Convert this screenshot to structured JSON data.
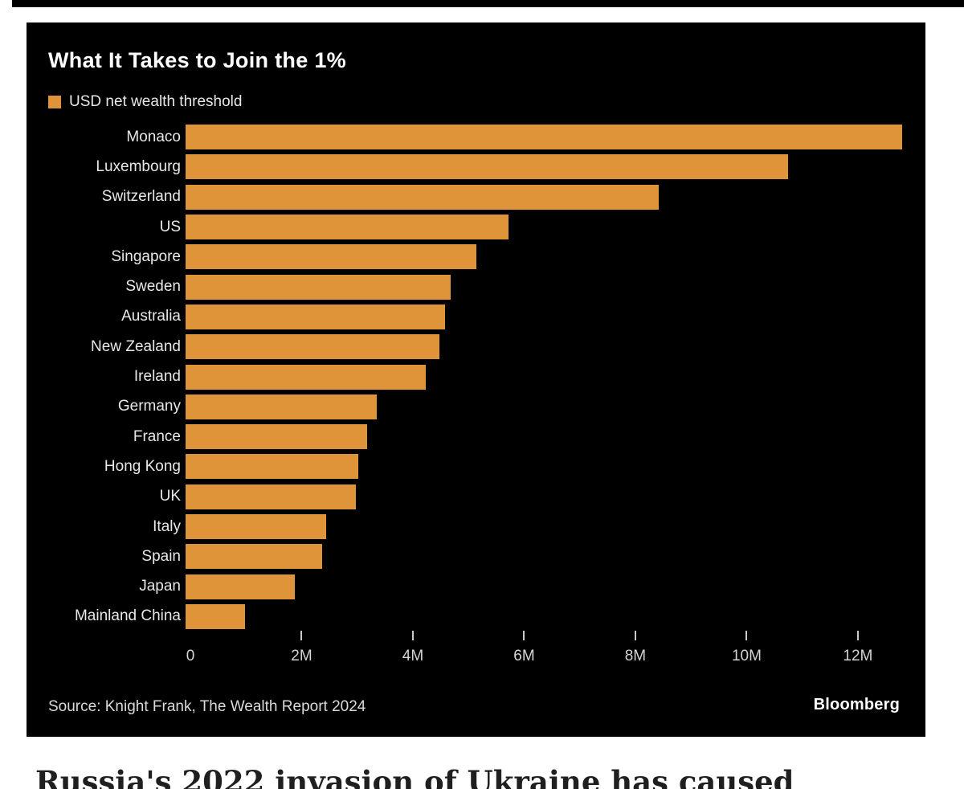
{
  "page": {
    "background": "#ffffff",
    "top_strip_color": "#000000"
  },
  "chart": {
    "title": "What It Takes to Join the 1%",
    "legend": {
      "label": "USD net wealth threshold",
      "swatch_color": "#DF9439"
    },
    "source": "Source: Knight Frank, The Wealth Report 2024",
    "brand": "Bloomberg",
    "colors": {
      "card_bg": "#000000",
      "bar": "#DF9439",
      "title_text": "#ffffff",
      "label_text": "#e8e8e8",
      "axis_text": "#d4d4d4"
    }
  },
  "chart_data": {
    "type": "bar",
    "orientation": "horizontal",
    "title": "What It Takes to Join the 1%",
    "series_label": "USD net wealth threshold",
    "unit": "USD millions",
    "categories": [
      "Monaco",
      "Luxembourg",
      "Switzerland",
      "US",
      "Singapore",
      "Sweden",
      "Australia",
      "New Zealand",
      "Ireland",
      "Germany",
      "France",
      "Hong Kong",
      "UK",
      "Italy",
      "Spain",
      "Japan",
      "Mainland China"
    ],
    "values_musd": [
      12.88,
      10.83,
      8.51,
      5.81,
      5.23,
      4.76,
      4.67,
      4.57,
      4.32,
      3.43,
      3.27,
      3.1,
      3.06,
      2.53,
      2.46,
      1.97,
      1.07
    ],
    "xlim": [
      0,
      13.2
    ],
    "x_ticks": [
      {
        "value": 0,
        "label": "0",
        "mark": false
      },
      {
        "value": 2,
        "label": "2M",
        "mark": true
      },
      {
        "value": 4,
        "label": "4M",
        "mark": true
      },
      {
        "value": 6,
        "label": "6M",
        "mark": true
      },
      {
        "value": 8,
        "label": "8M",
        "mark": true
      },
      {
        "value": 10,
        "label": "10M",
        "mark": true
      },
      {
        "value": 12,
        "label": "12M",
        "mark": true
      }
    ],
    "grid": false,
    "legend_position": "top-left"
  },
  "below_headline": {
    "text": "Russia's 2022 invasion of Ukraine has caused",
    "clipped": true
  }
}
